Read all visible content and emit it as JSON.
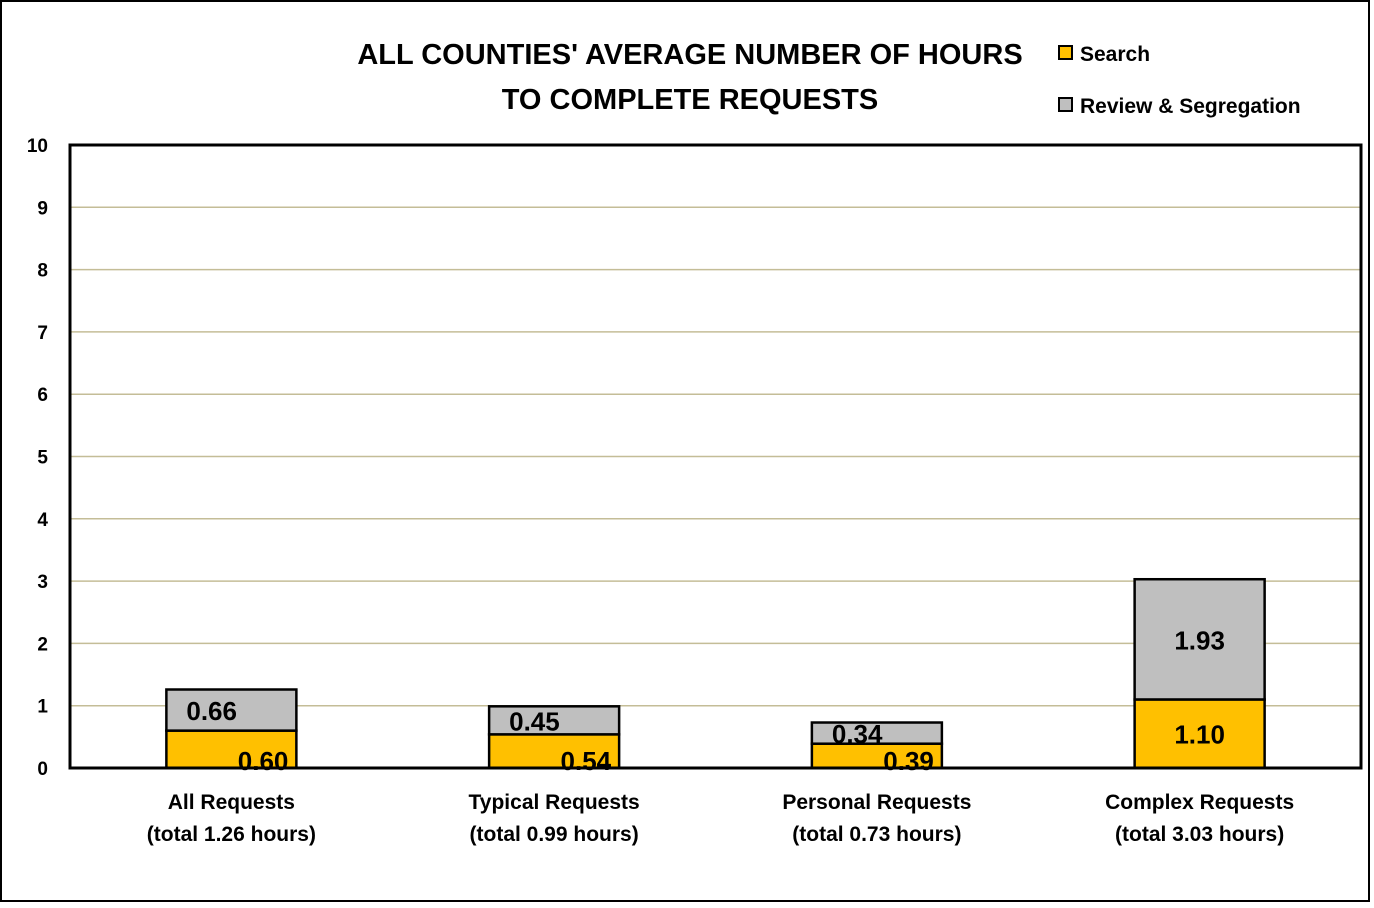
{
  "chart_data": {
    "type": "bar",
    "stacked": true,
    "title_lines": [
      "ALL COUNTIES' AVERAGE NUMBER OF HOURS",
      "TO COMPLETE REQUESTS"
    ],
    "categories": [
      {
        "line1": "All Requests",
        "line2": "(total 1.26 hours)"
      },
      {
        "line1": "Typical Requests",
        "line2": "(total 0.99 hours)"
      },
      {
        "line1": "Personal Requests",
        "line2": "(total 0.73 hours)"
      },
      {
        "line1": "Complex Requests",
        "line2": "(total 3.03 hours)"
      }
    ],
    "series": [
      {
        "name": "Search",
        "color": "#FFC000",
        "values": [
          0.6,
          0.54,
          0.39,
          1.1
        ],
        "labels": [
          "0.60",
          "0.54",
          "0.39",
          "1.10"
        ]
      },
      {
        "name": "Review & Segregation",
        "color": "#BFBFBF",
        "values": [
          0.66,
          0.45,
          0.34,
          1.93
        ],
        "labels": [
          "0.66",
          "0.45",
          "0.34",
          "1.93"
        ]
      }
    ],
    "ylim": [
      0,
      10
    ],
    "yticks": [
      "0",
      "1",
      "2",
      "3",
      "4",
      "5",
      "6",
      "7",
      "8",
      "9",
      "10"
    ],
    "grid": true,
    "legend_position": "top-right"
  }
}
